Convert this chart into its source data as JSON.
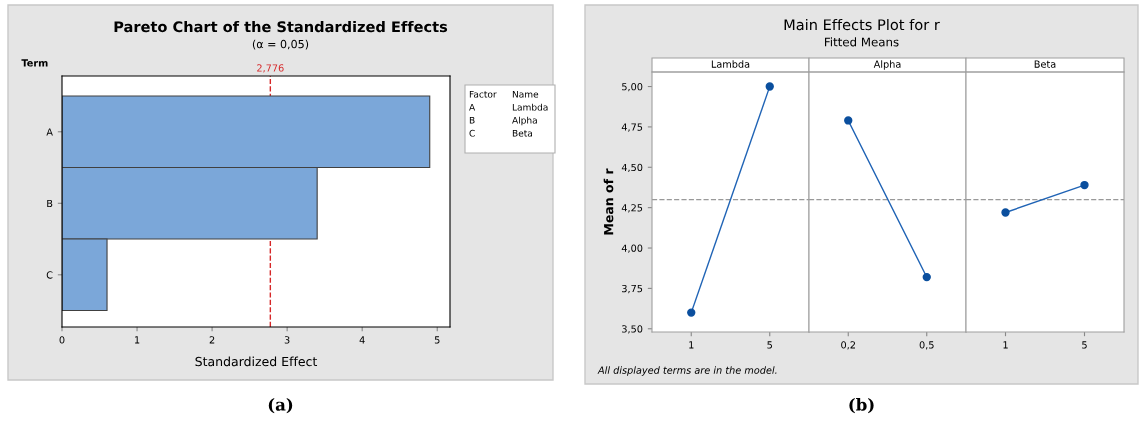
{
  "chart_data": [
    {
      "type": "bar",
      "orientation": "horizontal",
      "title": "Pareto Chart of the Standardized Effects",
      "subtitle": "(α = 0,05)",
      "ylabel": "Term",
      "xlabel": "Standardized Effect",
      "categories": [
        "A",
        "B",
        "C"
      ],
      "values": [
        4.9,
        3.4,
        0.6
      ],
      "color": "#7ba7d9",
      "xlim": [
        0,
        5.17
      ],
      "xticks": [
        0,
        1,
        2,
        3,
        4,
        5
      ],
      "grid": false,
      "ref_lines": [
        {
          "axis": "x",
          "value": 2.776,
          "label": "2,776",
          "color": "#d62728",
          "line_style": "dashed"
        }
      ],
      "annotations": [
        "Factor",
        "Name",
        "A",
        "Lambda",
        "B",
        "Alpha",
        "C",
        "Beta",
        "(a)"
      ]
    },
    {
      "type": "line",
      "xlabel": "Lambda",
      "ylabel": "Mean of r",
      "categories": [
        "1",
        "5"
      ],
      "series": [
        {
          "color": "#1f63b5",
          "values": [
            3.6,
            5.0
          ]
        }
      ],
      "marker": "circle",
      "ylim": [
        3.48,
        5.09
      ],
      "yticks": [
        {
          "value": 3.5,
          "label": "3,50"
        },
        {
          "value": 3.75,
          "label": "3,75"
        },
        {
          "value": 4.0,
          "label": "4,00"
        },
        {
          "value": 4.25,
          "label": "4,25"
        },
        {
          "value": 4.5,
          "label": "4,50"
        },
        {
          "value": 4.75,
          "label": "4,75"
        },
        {
          "value": 5.0,
          "label": "5,00"
        }
      ],
      "ref_lines": [
        {
          "axis": "y",
          "value": 4.3,
          "color": "#999999",
          "line_style": "dashed"
        }
      ],
      "annotations": [
        "All displayed terms are in the model.",
        "(b)"
      ]
    },
    {
      "type": "line",
      "title": "Main Effects Plot for r",
      "subtitle": "Fitted Means",
      "xlabel": "Alpha",
      "categories": [
        "0,2",
        "0,5"
      ],
      "series": [
        {
          "color": "#1f63b5",
          "values": [
            4.79,
            3.82
          ]
        }
      ],
      "marker": "circle",
      "ylim": [
        3.48,
        5.09
      ],
      "tick_labels": "x",
      "ref_lines": [
        {
          "axis": "y",
          "value": 4.3,
          "color": "#999999",
          "line_style": "dashed"
        }
      ]
    },
    {
      "type": "line",
      "xlabel": "Beta",
      "categories": [
        "1",
        "5"
      ],
      "series": [
        {
          "color": "#1f63b5",
          "values": [
            4.22,
            4.39
          ]
        }
      ],
      "marker": "circle",
      "ylim": [
        3.48,
        5.09
      ],
      "tick_labels": "x",
      "ref_lines": [
        {
          "axis": "y",
          "value": 4.3,
          "color": "#999999",
          "line_style": "dashed"
        }
      ]
    }
  ]
}
